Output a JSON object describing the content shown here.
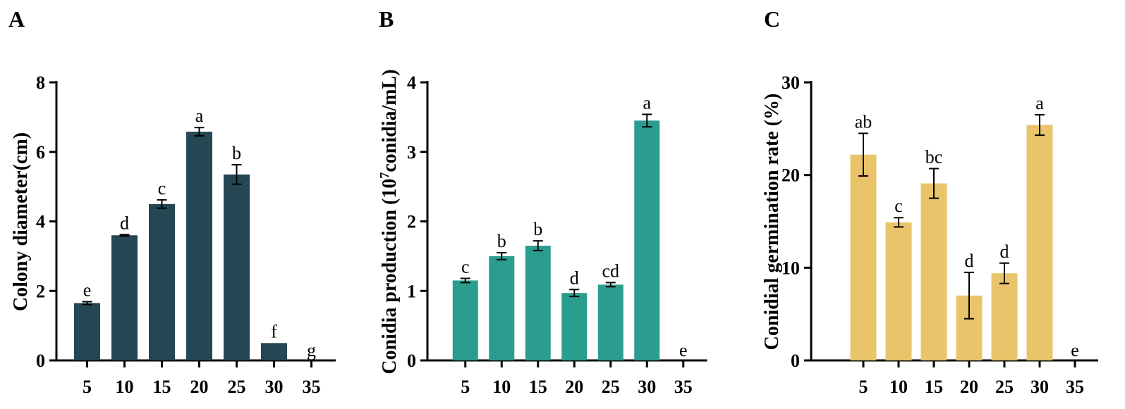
{
  "chart_data": [
    {
      "panel": "A",
      "type": "bar",
      "categories": [
        "5",
        "10",
        "15",
        "20",
        "25",
        "30",
        "35"
      ],
      "values": [
        1.65,
        3.6,
        4.5,
        6.58,
        5.35,
        0.5,
        0
      ],
      "errors": [
        0.04,
        0.02,
        0.12,
        0.12,
        0.28,
        0,
        0
      ],
      "sig_letters": [
        "e",
        "d",
        "c",
        "a",
        "b",
        "f",
        "g"
      ],
      "ylabel": "Colony diameter(cm)",
      "xlabel": "",
      "ylim": [
        0,
        8
      ],
      "yticks": [
        "0",
        "2",
        "4",
        "6",
        "8"
      ],
      "color": "#254653"
    },
    {
      "panel": "B",
      "type": "bar",
      "categories": [
        "5",
        "10",
        "15",
        "20",
        "25",
        "30",
        "35"
      ],
      "values": [
        1.15,
        1.5,
        1.65,
        0.97,
        1.09,
        3.45,
        0
      ],
      "errors": [
        0.03,
        0.05,
        0.07,
        0.05,
        0.03,
        0.09,
        0
      ],
      "sig_letters": [
        "c",
        "b",
        "b",
        "d",
        "cd",
        "a",
        "e"
      ],
      "ylabel_parts": [
        "Conidia production (10",
        "7",
        "conidia/mL)"
      ],
      "xlabel": "",
      "ylim": [
        0,
        4
      ],
      "yticks": [
        "0",
        "1",
        "2",
        "3",
        "4"
      ],
      "color": "#2a9d8f"
    },
    {
      "panel": "C",
      "type": "bar",
      "categories": [
        "5",
        "10",
        "15",
        "20",
        "25",
        "30",
        "35"
      ],
      "values": [
        22.2,
        14.9,
        19.1,
        7.0,
        9.4,
        25.4,
        0
      ],
      "errors": [
        2.3,
        0.5,
        1.6,
        2.5,
        1.1,
        1.1,
        0
      ],
      "sig_letters": [
        "ab",
        "c",
        "bc",
        "d",
        "d",
        "a",
        "e"
      ],
      "ylabel": "Conidial germination rate (%)",
      "xlabel": "",
      "ylim": [
        0,
        30
      ],
      "yticks": [
        "0",
        "10",
        "20",
        "30"
      ],
      "color": "#e9c46a"
    }
  ]
}
